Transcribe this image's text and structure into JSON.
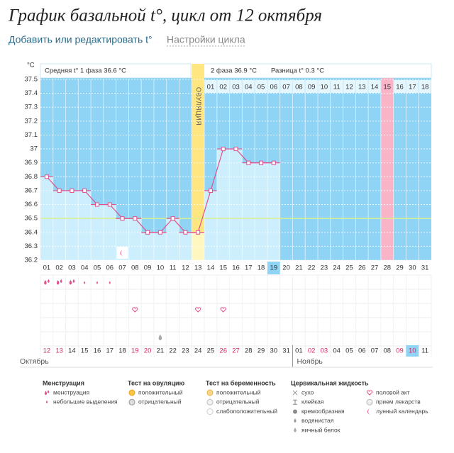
{
  "title": "График базальной t°, цикл от 12 октября",
  "links": [
    "Добавить или редактировать t°",
    "Настройки цикла"
  ],
  "chart_data": {
    "type": "line",
    "y_unit": "°C",
    "phase1": "Средняя t° 1 фаза 36.6 °C",
    "phase2": "2 фаза 36.9 °C",
    "difference": "Разница t° 0.3 °C",
    "ovulation_label": "ОВУЛЯЦИЯ",
    "ovulation_index": 12,
    "categories": [
      "01",
      "02",
      "03",
      "04",
      "05",
      "06",
      "07",
      "08",
      "09",
      "10",
      "11",
      "12",
      "13",
      "14",
      "15",
      "16",
      "17",
      "18",
      "19",
      "20",
      "21",
      "22",
      "23",
      "24",
      "25",
      "26",
      "27",
      "28",
      "29",
      "30",
      "31"
    ],
    "values": [
      36.8,
      36.7,
      36.7,
      36.7,
      36.6,
      36.6,
      36.5,
      36.5,
      36.4,
      36.4,
      36.5,
      36.4,
      36.4,
      36.7,
      37,
      37,
      36.9,
      36.9,
      36.9,
      null,
      null,
      null,
      null,
      null,
      null,
      null,
      null,
      null,
      null,
      null,
      null
    ],
    "post_ovulation_days": [
      "01",
      "02",
      "03",
      "04",
      "05",
      "06",
      "07",
      "08",
      "09",
      "10",
      "11",
      "12",
      "13",
      "14",
      "15",
      "16",
      "17",
      "18"
    ],
    "pink_post_ovulation_index": 14,
    "selected_index": 18,
    "coverline": 36.5,
    "line_color": "#e0508a",
    "ylim": [
      36.2,
      37.5
    ],
    "yticks": [
      36.2,
      36.3,
      36.4,
      36.5,
      36.6,
      36.7,
      36.8,
      36.9,
      {
        "value": 37,
        "label": "37"
      },
      37.1,
      37.2,
      37.3,
      37.4,
      37.5
    ],
    "grid": true,
    "dates": [
      "12",
      "13",
      "14",
      "15",
      "16",
      "17",
      "18",
      "19",
      "20",
      "21",
      "22",
      "23",
      "24",
      "25",
      "26",
      "27",
      "28",
      "29",
      "30",
      "31",
      "01",
      "02",
      "03",
      "04",
      "05",
      "06",
      "07",
      "08",
      "09",
      "10",
      "11"
    ],
    "weekend": [
      true,
      true,
      false,
      false,
      false,
      false,
      false,
      true,
      true,
      false,
      false,
      false,
      false,
      false,
      true,
      true,
      false,
      false,
      false,
      false,
      false,
      true,
      true,
      false,
      false,
      false,
      false,
      false,
      true,
      true,
      false
    ],
    "months": [
      {
        "label": "Октябрь",
        "start": 0
      },
      {
        "label": "Ноябрь",
        "start": 20
      }
    ],
    "menstruation_days": [
      0,
      1,
      2
    ],
    "spotting_days": [
      3,
      4,
      5
    ],
    "moon_days": [
      6
    ],
    "sex_days": [
      7,
      12,
      14
    ],
    "eggwhite_days": [
      9
    ]
  },
  "legend": [
    {
      "title": "Менструация",
      "items": [
        "менструация",
        "небольшие выделения"
      ]
    },
    {
      "title": "Тест на овуляцию",
      "items": [
        "положительный",
        "отрицательный"
      ]
    },
    {
      "title": "Тест на беременность",
      "items": [
        "положительный",
        "отрицательный",
        "слабоположительный"
      ]
    },
    {
      "title": "Цервикальная жидкость",
      "items": [
        "сухо",
        "клейкая",
        "кремообразная",
        "водянистая",
        "яичный белок"
      ]
    },
    {
      "items": [
        "половой акт",
        "прием лекарств",
        "лунный календарь"
      ]
    }
  ]
}
